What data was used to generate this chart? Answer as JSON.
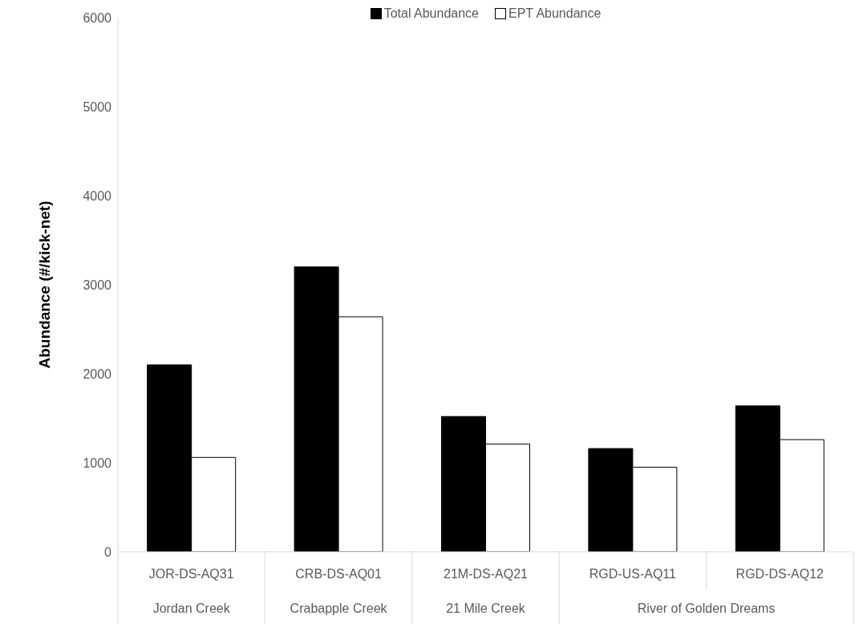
{
  "chart_data": {
    "type": "bar",
    "ylabel": "Abundance (#/kick-net)",
    "categories": [
      "JOR-DS-AQ31",
      "CRB-DS-AQ01",
      "21M-DS-AQ21",
      "RGD-US-AQ11",
      "RGD-DS-AQ12"
    ],
    "series": [
      {
        "name": "Total Abundance",
        "color": "#000000",
        "values": [
          2100,
          3200,
          1520,
          1160,
          1640
        ]
      },
      {
        "name": "EPT Abundance",
        "color": "#ffffff",
        "values": [
          1060,
          2640,
          1210,
          950,
          1260
        ]
      }
    ],
    "ylim": [
      0,
      6000
    ],
    "yticks": [
      0,
      1000,
      2000,
      3000,
      4000,
      5000,
      6000
    ],
    "legend": "top",
    "grid": false,
    "annotations": [
      "Jordan Creek",
      "Crabapple Creek",
      "21 Mile Creek",
      "River of Golden Dreams"
    ]
  }
}
